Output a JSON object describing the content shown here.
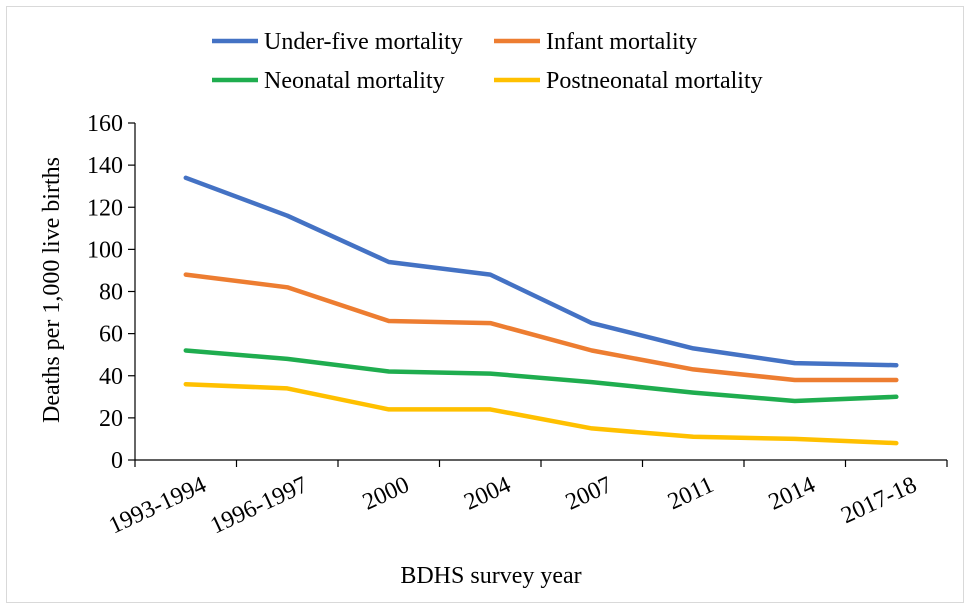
{
  "chart_data": {
    "type": "line",
    "xlabel": "BDHS survey year",
    "ylabel": "Deaths per 1,000 live births",
    "categories": [
      "1993-1994",
      "1996-1997",
      "2000",
      "2004",
      "2007",
      "2011",
      "2014",
      "2017-18"
    ],
    "ylim": [
      0,
      160
    ],
    "yticks": [
      0,
      20,
      40,
      60,
      80,
      100,
      120,
      140,
      160
    ],
    "grid": false,
    "legend_position": "top",
    "series": [
      {
        "name": "Under-five mortality",
        "color": "#4472c4",
        "values": [
          134,
          116,
          94,
          88,
          65,
          53,
          46,
          45
        ]
      },
      {
        "name": "Infant mortality",
        "color": "#ed7d31",
        "values": [
          88,
          82,
          66,
          65,
          52,
          43,
          38,
          38
        ]
      },
      {
        "name": "Neonatal mortality",
        "color": "#1fad4f",
        "values": [
          52,
          48,
          42,
          41,
          37,
          32,
          28,
          30
        ]
      },
      {
        "name": "Postneonatal mortality",
        "color": "#ffc000",
        "values": [
          36,
          34,
          24,
          24,
          15,
          11,
          10,
          8
        ]
      }
    ]
  }
}
